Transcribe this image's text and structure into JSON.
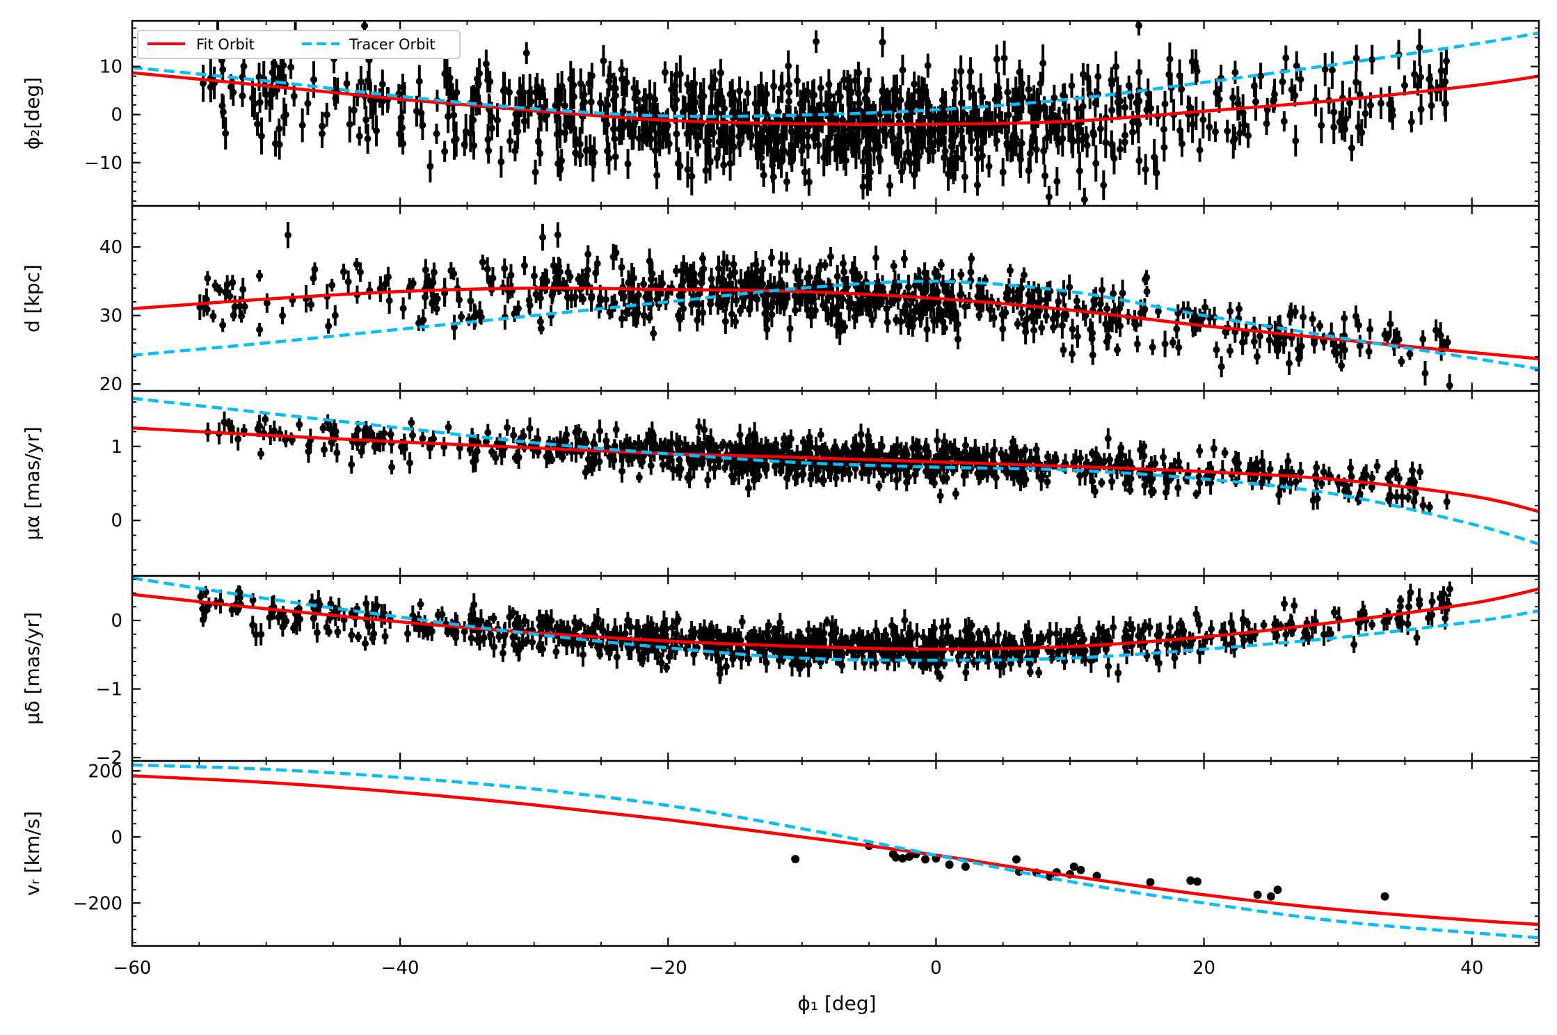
{
  "colors": {
    "fit": "#ff0000",
    "tracer": "#00bfff",
    "data": "#000000"
  },
  "legend": {
    "fit_label": "Fit Orbit",
    "tracer_label": "Tracer Orbit",
    "placement": "top-left"
  },
  "chart_data": {
    "type": "line",
    "xlabel": "ϕ₁ [deg]",
    "xlim": [
      -60,
      45
    ],
    "xticks": [
      -60,
      -40,
      -20,
      0,
      20,
      40
    ],
    "xtick_labels": [
      "−60",
      "−40",
      "−20",
      "0",
      "20",
      "40"
    ],
    "panels": [
      {
        "id": "phi2",
        "ylabel": "ϕ₂[deg]",
        "ylim": [
          -19,
          19.5
        ],
        "yticks": [
          -10,
          0,
          10
        ],
        "ytick_labels": [
          "−10",
          "0",
          "10"
        ],
        "series": [
          {
            "name": "Fit Orbit",
            "x": [
              -60,
              -50,
              -40,
              -30,
              -20,
              -10,
              0,
              10,
              20,
              30,
              40,
              45
            ],
            "y": [
              8.7,
              6.0,
              3.2,
              0.8,
              -1.2,
              -1.9,
              -2.0,
              -1.4,
              0.7,
              3.0,
              6.0,
              8.0
            ]
          },
          {
            "name": "Tracer Orbit",
            "x": [
              -60,
              -50,
              -40,
              -30,
              -20,
              -10,
              0,
              10,
              20,
              30,
              40,
              45
            ],
            "y": [
              9.8,
              7.0,
              3.8,
              1.2,
              -0.3,
              -0.1,
              1.0,
              3.2,
              6.7,
              10.5,
              14.6,
              17.0
            ]
          }
        ],
        "tracer_points": {
          "count": 900,
          "x_range": [
            -55,
            38.5
          ],
          "center_fn": "fit",
          "scatter": 5.5,
          "err": [
            2.0,
            4.0
          ]
        }
      },
      {
        "id": "d",
        "ylabel": "d [kpc]",
        "ylim": [
          19,
          46
        ],
        "yticks": [
          20,
          30,
          40
        ],
        "ytick_labels": [
          "20",
          "30",
          "40"
        ],
        "series": [
          {
            "name": "Fit Orbit",
            "x": [
              -60,
              -50,
              -40,
              -30,
              -20,
              -10,
              0,
              10,
              20,
              30,
              40,
              45
            ],
            "y": [
              31.0,
              32.4,
              33.5,
              34.0,
              33.8,
              33.5,
              32.5,
              30.8,
              28.5,
              26.5,
              24.6,
              23.7
            ]
          },
          {
            "name": "Tracer Orbit",
            "x": [
              -60,
              -50,
              -40,
              -30,
              -20,
              -10,
              0,
              10,
              20,
              30,
              40,
              45
            ],
            "y": [
              24.2,
              26.0,
              28.0,
              30.0,
              32.0,
              34.0,
              35.0,
              33.5,
              30.0,
              26.8,
              23.8,
              22.2
            ]
          }
        ],
        "tracer_points": {
          "count": 700,
          "x_range": [
            -55,
            38.5
          ],
          "center_fn": "fit",
          "scatter": 2.4,
          "err": [
            0.8,
            2.0
          ]
        }
      },
      {
        "id": "pmra",
        "ylabel": "μα [mas/yr]",
        "ylim": [
          -0.75,
          1.75
        ],
        "yticks": [
          0,
          1
        ],
        "ytick_labels": [
          "0",
          "1"
        ],
        "series": [
          {
            "name": "Fit Orbit",
            "x": [
              -60,
              -50,
              -40,
              -30,
              -20,
              -10,
              0,
              10,
              20,
              30,
              40,
              45
            ],
            "y": [
              1.25,
              1.15,
              1.06,
              0.98,
              0.9,
              0.85,
              0.79,
              0.73,
              0.66,
              0.55,
              0.33,
              0.12
            ]
          },
          {
            "name": "Tracer Orbit",
            "x": [
              -60,
              -50,
              -40,
              -30,
              -20,
              -10,
              0,
              10,
              20,
              30,
              40,
              45
            ],
            "y": [
              1.65,
              1.45,
              1.25,
              1.05,
              0.9,
              0.78,
              0.72,
              0.68,
              0.56,
              0.35,
              -0.05,
              -0.32
            ]
          }
        ],
        "tracer_points": {
          "count": 850,
          "x_range": [
            -55,
            38.5
          ],
          "center_fn": "fit",
          "scatter": 0.13,
          "err": [
            0.06,
            0.16
          ]
        }
      },
      {
        "id": "pmdec",
        "ylabel": "μδ [mas/yr]",
        "ylim": [
          -2.05,
          0.65
        ],
        "yticks": [
          -2,
          -1,
          0
        ],
        "ytick_labels": [
          "−2",
          "−1",
          "0"
        ],
        "series": [
          {
            "name": "Fit Orbit",
            "x": [
              -60,
              -50,
              -40,
              -30,
              -20,
              -10,
              0,
              10,
              20,
              30,
              40,
              45
            ],
            "y": [
              0.38,
              0.17,
              -0.02,
              -0.18,
              -0.3,
              -0.38,
              -0.42,
              -0.38,
              -0.24,
              -0.02,
              0.25,
              0.46
            ]
          },
          {
            "name": "Tracer Orbit",
            "x": [
              -60,
              -50,
              -40,
              -30,
              -20,
              -10,
              0,
              10,
              20,
              30,
              40,
              45
            ],
            "y": [
              0.62,
              0.32,
              0.05,
              -0.2,
              -0.4,
              -0.55,
              -0.58,
              -0.55,
              -0.42,
              -0.25,
              -0.02,
              0.14
            ]
          }
        ],
        "tracer_points": {
          "count": 850,
          "x_range": [
            -55,
            38.5
          ],
          "center_fn": "fit",
          "scatter": 0.14,
          "err": [
            0.07,
            0.18
          ]
        }
      },
      {
        "id": "vr",
        "ylabel": "vᵣ [km/s]",
        "ylim": [
          -330,
          230
        ],
        "yticks": [
          -200,
          0,
          200
        ],
        "ytick_labels": [
          "−200",
          "0",
          "200"
        ],
        "series": [
          {
            "name": "Fit Orbit",
            "x": [
              -60,
              -50,
              -40,
              -30,
              -20,
              -10,
              0,
              10,
              20,
              30,
              40,
              45
            ],
            "y": [
              185,
              165,
              135,
              97,
              52,
              0,
              -55,
              -118,
              -175,
              -220,
              -252,
              -265
            ]
          },
          {
            "name": "Tracer Orbit",
            "x": [
              -60,
              -50,
              -40,
              -30,
              -20,
              -10,
              0,
              10,
              20,
              30,
              40,
              45
            ],
            "y": [
              218,
              205,
              180,
              145,
              95,
              25,
              -55,
              -135,
              -200,
              -255,
              -290,
              -305
            ]
          }
        ],
        "points": [
          [
            -10.5,
            -67
          ],
          [
            -5,
            -27
          ],
          [
            -3.2,
            -52
          ],
          [
            -3.0,
            -62
          ],
          [
            -2.5,
            -65
          ],
          [
            -2.0,
            -60
          ],
          [
            -1.5,
            -52
          ],
          [
            -0.8,
            -68
          ],
          [
            0,
            -65
          ],
          [
            1,
            -84
          ],
          [
            2.2,
            -90
          ],
          [
            6,
            -68
          ],
          [
            6.2,
            -105
          ],
          [
            7.5,
            -108
          ],
          [
            8.5,
            -120
          ],
          [
            9,
            -107
          ],
          [
            10,
            -113
          ],
          [
            10.3,
            -90
          ],
          [
            10.8,
            -100
          ],
          [
            12,
            -118
          ],
          [
            16,
            -137
          ],
          [
            19,
            -132
          ],
          [
            19.5,
            -135
          ],
          [
            24,
            -175
          ],
          [
            25,
            -180
          ],
          [
            25.5,
            -160
          ],
          [
            33.5,
            -180
          ]
        ]
      }
    ]
  }
}
